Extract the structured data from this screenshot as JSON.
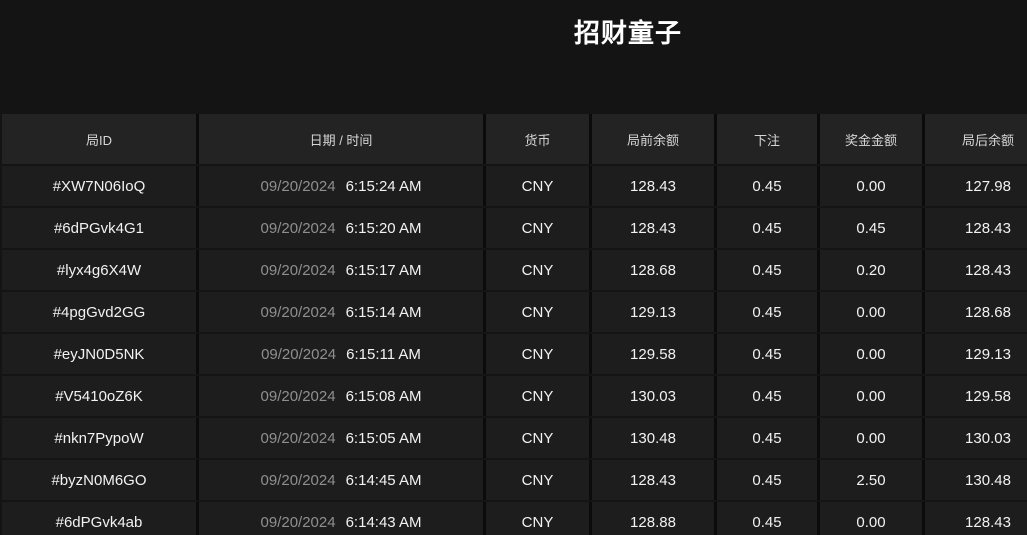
{
  "page": {
    "title": "招财童子"
  },
  "colors": {
    "background": "#141414",
    "header_cell": "#232323",
    "row_cell": "#1d1d1d",
    "separator": "#0b0b0b",
    "text_primary": "#f2f2f2",
    "text_muted": "#8f8f8f"
  },
  "table": {
    "columns": [
      {
        "key": "id",
        "label": "局ID"
      },
      {
        "key": "datetime",
        "label": "日期 / 时间"
      },
      {
        "key": "currency",
        "label": "货币"
      },
      {
        "key": "balance_before",
        "label": "局前余额"
      },
      {
        "key": "bet",
        "label": "下注"
      },
      {
        "key": "prize",
        "label": "奖金金额"
      },
      {
        "key": "balance_after",
        "label": "局后余额"
      }
    ],
    "rows": [
      {
        "id": "#XW7N06IoQ",
        "date": "09/20/2024",
        "time": "6:15:24 AM",
        "currency": "CNY",
        "balance_before": "128.43",
        "bet": "0.45",
        "prize": "0.00",
        "balance_after": "127.98"
      },
      {
        "id": "#6dPGvk4G1",
        "date": "09/20/2024",
        "time": "6:15:20 AM",
        "currency": "CNY",
        "balance_before": "128.43",
        "bet": "0.45",
        "prize": "0.45",
        "balance_after": "128.43"
      },
      {
        "id": "#lyx4g6X4W",
        "date": "09/20/2024",
        "time": "6:15:17 AM",
        "currency": "CNY",
        "balance_before": "128.68",
        "bet": "0.45",
        "prize": "0.20",
        "balance_after": "128.43"
      },
      {
        "id": "#4pgGvd2GG",
        "date": "09/20/2024",
        "time": "6:15:14 AM",
        "currency": "CNY",
        "balance_before": "129.13",
        "bet": "0.45",
        "prize": "0.00",
        "balance_after": "128.68"
      },
      {
        "id": "#eyJN0D5NK",
        "date": "09/20/2024",
        "time": "6:15:11 AM",
        "currency": "CNY",
        "balance_before": "129.58",
        "bet": "0.45",
        "prize": "0.00",
        "balance_after": "129.13"
      },
      {
        "id": "#V5410oZ6K",
        "date": "09/20/2024",
        "time": "6:15:08 AM",
        "currency": "CNY",
        "balance_before": "130.03",
        "bet": "0.45",
        "prize": "0.00",
        "balance_after": "129.58"
      },
      {
        "id": "#nkn7PypoW",
        "date": "09/20/2024",
        "time": "6:15:05 AM",
        "currency": "CNY",
        "balance_before": "130.48",
        "bet": "0.45",
        "prize": "0.00",
        "balance_after": "130.03"
      },
      {
        "id": "#byzN0M6GO",
        "date": "09/20/2024",
        "time": "6:14:45 AM",
        "currency": "CNY",
        "balance_before": "128.43",
        "bet": "0.45",
        "prize": "2.50",
        "balance_after": "130.48"
      },
      {
        "id": "#6dPGvk4ab",
        "date": "09/20/2024",
        "time": "6:14:43 AM",
        "currency": "CNY",
        "balance_before": "128.88",
        "bet": "0.45",
        "prize": "0.00",
        "balance_after": "128.43"
      }
    ]
  }
}
